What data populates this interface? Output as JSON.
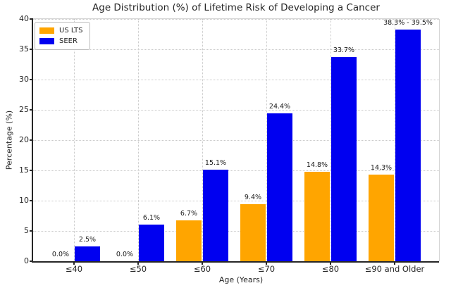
{
  "chart_data": {
    "type": "bar",
    "title": "Age Distribution (%) of Lifetime Risk of Developing a Cancer",
    "xlabel": "Age (Years)",
    "ylabel": "Percentage (%)",
    "categories": [
      "≤40",
      "≤50",
      "≤60",
      "≤70",
      "≤80",
      "≤90 and Older"
    ],
    "series": [
      {
        "name": "US LTS",
        "color": "#FFA500",
        "values": [
          0.0,
          0.0,
          6.7,
          9.4,
          14.8,
          14.3
        ],
        "labels": [
          "0.0%",
          "0.0%",
          "6.7%",
          "9.4%",
          "14.8%",
          "14.3%"
        ]
      },
      {
        "name": "SEER",
        "color": "#0000F0",
        "values": [
          2.5,
          6.1,
          15.1,
          24.4,
          33.7,
          38.3
        ],
        "labels": [
          "2.5%",
          "6.1%",
          "15.1%",
          "24.4%",
          "33.7%",
          "38.3% - 39.5%"
        ]
      }
    ],
    "ylim": [
      0,
      40
    ],
    "yticks": [
      0,
      5,
      10,
      15,
      20,
      25,
      30,
      35,
      40
    ],
    "grid": true,
    "grid_style": "dotted",
    "legend_position": "upper left",
    "text_color": "#262626",
    "background_color": "#ffffff"
  }
}
